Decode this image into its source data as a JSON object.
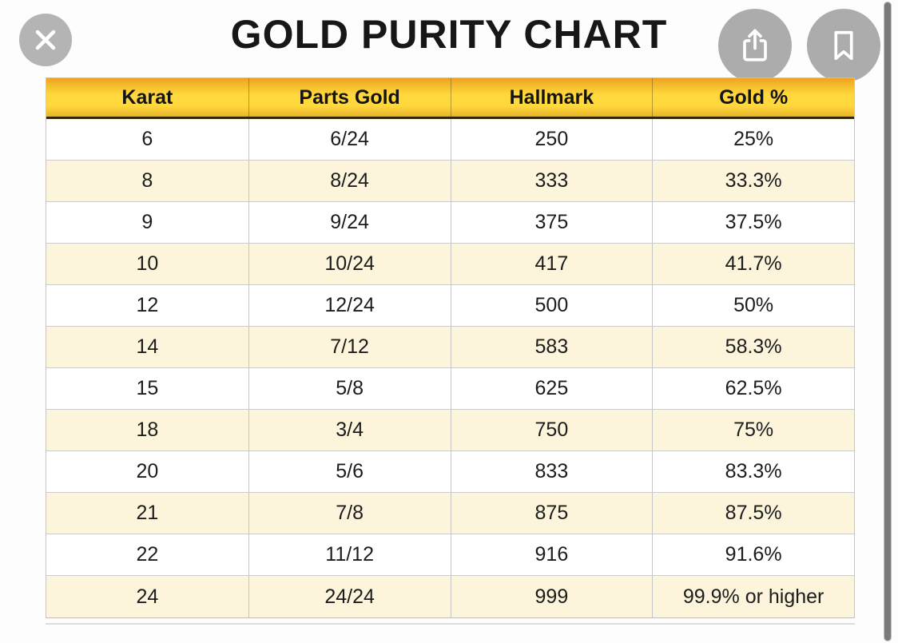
{
  "title": "GOLD PURITY CHART",
  "toolbar": {
    "close_icon": "close-x-icon",
    "share_icon": "share-up-arrow-icon",
    "bookmark_icon": "bookmark-outline-icon"
  },
  "colors": {
    "header_gradient_top": "#eda41f",
    "header_yellow": "#ffd83d",
    "header_underline": "#2e2a05",
    "row_alternate_cream": "#fcf5dc",
    "row_white": "#ffffff",
    "button_circle_gray": "#b0b0b0",
    "scrollbar_gray": "#7b7b7b",
    "title_color": "#171717"
  },
  "table": {
    "columns": [
      "Karat",
      "Parts Gold",
      "Hallmark",
      "Gold %"
    ],
    "rows": [
      [
        "6",
        "6/24",
        "250",
        "25%"
      ],
      [
        "8",
        "8/24",
        "333",
        "33.3%"
      ],
      [
        "9",
        "9/24",
        "375",
        "37.5%"
      ],
      [
        "10",
        "10/24",
        "417",
        "41.7%"
      ],
      [
        "12",
        "12/24",
        "500",
        "50%"
      ],
      [
        "14",
        "7/12",
        "583",
        "58.3%"
      ],
      [
        "15",
        "5/8",
        "625",
        "62.5%"
      ],
      [
        "18",
        "3/4",
        "750",
        "75%"
      ],
      [
        "20",
        "5/6",
        "833",
        "83.3%"
      ],
      [
        "21",
        "7/8",
        "875",
        "87.5%"
      ],
      [
        "22",
        "11/12",
        "916",
        "91.6%"
      ],
      [
        "24",
        "24/24",
        "999",
        "99.9% or higher"
      ]
    ]
  },
  "chart_data": {
    "type": "table",
    "title": "GOLD PURITY CHART",
    "columns": [
      "Karat",
      "Parts Gold",
      "Hallmark",
      "Gold %"
    ],
    "rows": [
      [
        "6",
        "6/24",
        "250",
        "25%"
      ],
      [
        "8",
        "8/24",
        "333",
        "33.3%"
      ],
      [
        "9",
        "9/24",
        "375",
        "37.5%"
      ],
      [
        "10",
        "10/24",
        "417",
        "41.7%"
      ],
      [
        "12",
        "12/24",
        "500",
        "50%"
      ],
      [
        "14",
        "7/12",
        "583",
        "58.3%"
      ],
      [
        "15",
        "5/8",
        "625",
        "62.5%"
      ],
      [
        "18",
        "3/4",
        "750",
        "75%"
      ],
      [
        "20",
        "5/6",
        "833",
        "83.3%"
      ],
      [
        "21",
        "7/8",
        "875",
        "87.5%"
      ],
      [
        "22",
        "11/12",
        "916",
        "91.6%"
      ],
      [
        "24",
        "24/24",
        "999",
        "99.9% or higher"
      ]
    ]
  }
}
